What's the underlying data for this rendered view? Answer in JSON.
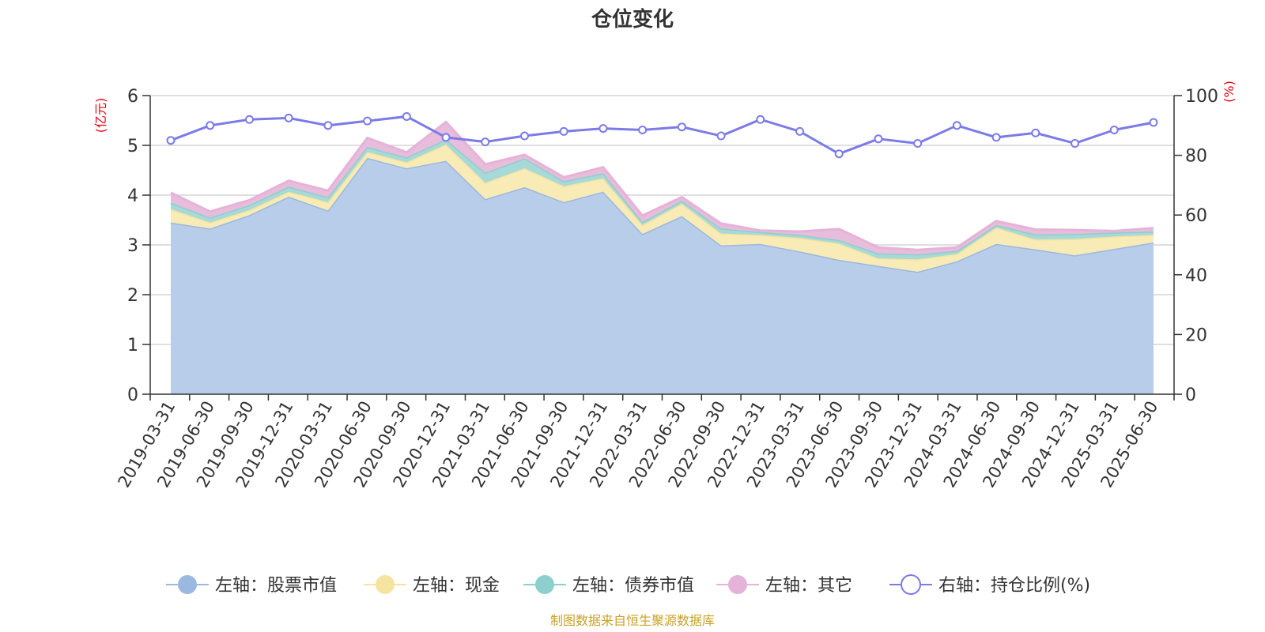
{
  "chart_data": {
    "type": "area",
    "title": "仓位变化",
    "source": "制图数据来自恒生聚源数据库",
    "left_axis": {
      "unit": "(亿元)",
      "ylim": [
        0,
        6
      ],
      "ticks": [
        "0",
        "1",
        "2",
        "3",
        "4",
        "5",
        "6"
      ]
    },
    "right_axis": {
      "unit": "(%)",
      "ylim": [
        0,
        100
      ],
      "ticks": [
        "0",
        "20",
        "40",
        "60",
        "80",
        "100"
      ]
    },
    "grid": true,
    "legend_position": "bottom",
    "categories": [
      "2019-03-31",
      "2019-06-30",
      "2019-09-30",
      "2019-12-31",
      "2020-03-31",
      "2020-06-30",
      "2020-09-30",
      "2020-12-31",
      "2021-03-31",
      "2021-06-30",
      "2021-09-30",
      "2021-12-31",
      "2022-03-31",
      "2022-06-30",
      "2022-09-30",
      "2022-12-31",
      "2023-03-31",
      "2023-06-30",
      "2023-09-30",
      "2023-12-31",
      "2024-03-31",
      "2024-06-30",
      "2024-09-30",
      "2024-12-31",
      "2025-03-31",
      "2025-06-30"
    ],
    "series": [
      {
        "name": "左轴：股票市值",
        "axis": "left",
        "kind": "area",
        "color": "#9bb8e0",
        "fill": "#b8cdea",
        "values": [
          3.45,
          3.33,
          3.6,
          3.97,
          3.69,
          4.75,
          4.54,
          4.69,
          3.92,
          4.16,
          3.86,
          4.07,
          3.22,
          3.58,
          2.99,
          3.02,
          2.87,
          2.7,
          2.58,
          2.46,
          2.67,
          3.02,
          2.91,
          2.79,
          2.92,
          3.05
        ]
      },
      {
        "name": "左轴：现金",
        "axis": "left",
        "kind": "area",
        "color": "#f5e3a0",
        "fill": "#f8ebb5",
        "values": [
          0.27,
          0.12,
          0.1,
          0.1,
          0.17,
          0.12,
          0.12,
          0.33,
          0.33,
          0.38,
          0.32,
          0.27,
          0.18,
          0.25,
          0.24,
          0.18,
          0.27,
          0.33,
          0.15,
          0.25,
          0.15,
          0.33,
          0.2,
          0.33,
          0.25,
          0.15
        ]
      },
      {
        "name": "左轴：债券市值",
        "axis": "left",
        "kind": "area",
        "color": "#8dcfcf",
        "fill": "#a6d9d7",
        "values": [
          0.13,
          0.1,
          0.1,
          0.1,
          0.1,
          0.1,
          0.1,
          0.1,
          0.2,
          0.2,
          0.1,
          0.1,
          0.06,
          0.06,
          0.1,
          0.06,
          0.06,
          0.07,
          0.1,
          0.1,
          0.06,
          0.05,
          0.1,
          0.1,
          0.08,
          0.07
        ]
      },
      {
        "name": "左轴：其它",
        "axis": "left",
        "kind": "area",
        "color": "#e5b3d8",
        "fill": "#e8bcdb",
        "values": [
          0.2,
          0.12,
          0.1,
          0.12,
          0.13,
          0.18,
          0.1,
          0.35,
          0.17,
          0.07,
          0.08,
          0.12,
          0.13,
          0.07,
          0.1,
          0.03,
          0.07,
          0.22,
          0.12,
          0.09,
          0.07,
          0.08,
          0.1,
          0.08,
          0.03,
          0.07
        ]
      },
      {
        "name": "右轴：持仓比例(%)",
        "axis": "right",
        "kind": "line",
        "color": "#7b7be8",
        "values": [
          85,
          90,
          92,
          92.5,
          90,
          91.5,
          93,
          86,
          84.5,
          86.5,
          88,
          89,
          88.5,
          89.5,
          86.5,
          92,
          88,
          80.5,
          85.5,
          84,
          90,
          86,
          87.5,
          84,
          88.5,
          91
        ]
      }
    ]
  }
}
